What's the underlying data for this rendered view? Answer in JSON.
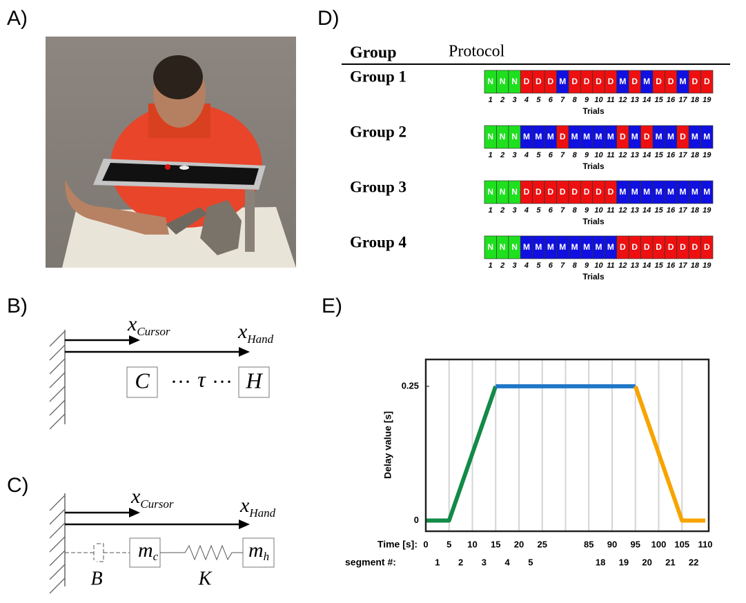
{
  "panel_labels": [
    "A)",
    "B)",
    "C)",
    "D)",
    "E)"
  ],
  "panel_b": {
    "x_cursor": {
      "symbol": "x",
      "subscript": "Cursor"
    },
    "x_hand": {
      "symbol": "x",
      "subscript": "Hand"
    },
    "cursor_box": "C",
    "hand_box": "H",
    "dots": "···",
    "delay": "τ"
  },
  "panel_c": {
    "x_cursor": {
      "symbol": "x",
      "subscript": "Cursor"
    },
    "x_hand": {
      "symbol": "x",
      "subscript": "Hand"
    },
    "damper": "B",
    "spring": "K",
    "cursor_mass": {
      "symbol": "m",
      "subscript": "c"
    },
    "hand_mass": {
      "symbol": "m",
      "subscript": "h"
    }
  },
  "panel_d": {
    "header": [
      "Group",
      "Protocol"
    ],
    "groups": [
      {
        "name": "Group 1",
        "protocol": [
          "N",
          "N",
          "N",
          "D",
          "D",
          "D",
          "M",
          "D",
          "D",
          "D",
          "D",
          "M",
          "D",
          "M",
          "D",
          "D",
          "M",
          "D",
          "D"
        ]
      },
      {
        "name": "Group 2",
        "protocol": [
          "N",
          "N",
          "N",
          "M",
          "M",
          "M",
          "D",
          "M",
          "M",
          "M",
          "M",
          "D",
          "M",
          "D",
          "M",
          "M",
          "D",
          "M",
          "M"
        ]
      },
      {
        "name": "Group 3",
        "protocol": [
          "N",
          "N",
          "N",
          "D",
          "D",
          "D",
          "D",
          "D",
          "D",
          "D",
          "D",
          "M",
          "M",
          "M",
          "M",
          "M",
          "M",
          "M",
          "M"
        ]
      },
      {
        "name": "Group 4",
        "protocol": [
          "N",
          "N",
          "N",
          "M",
          "M",
          "M",
          "M",
          "M",
          "M",
          "M",
          "M",
          "D",
          "D",
          "D",
          "D",
          "D",
          "D",
          "D",
          "D"
        ]
      }
    ],
    "trials": [
      1,
      2,
      3,
      4,
      5,
      6,
      7,
      8,
      9,
      10,
      11,
      12,
      13,
      14,
      15,
      16,
      17,
      18,
      19
    ],
    "trials_label": "Trials",
    "colors": {
      "N": "#1fe01f",
      "D": "#ee1010",
      "M": "#1010e0"
    }
  },
  "chart_data": {
    "type": "line",
    "y_label": "Delay value [s]",
    "x_label": "Time [s]:",
    "categories": [
      0,
      5,
      10,
      15,
      20,
      25,
      null,
      85,
      90,
      95,
      100,
      105,
      110
    ],
    "segment_label": "segment #:",
    "segments": [
      1,
      2,
      3,
      4,
      5,
      null,
      null,
      18,
      19,
      20,
      21,
      22
    ],
    "series": [
      {
        "color": "#138a48",
        "values": [
          0,
          0,
          0.125,
          0.25,
          null,
          null,
          null,
          null,
          null,
          null,
          null,
          null,
          null
        ]
      },
      {
        "color": "#1f78c8",
        "values": [
          null,
          null,
          null,
          0.25,
          0.25,
          0.25,
          0.25,
          0.25,
          0.25,
          0.25,
          null,
          null,
          null
        ]
      },
      {
        "color": "#f7a400",
        "values": [
          null,
          null,
          null,
          null,
          null,
          null,
          null,
          null,
          null,
          0.25,
          0.125,
          0,
          0
        ]
      }
    ],
    "ylim": [
      -0.02,
      0.3
    ],
    "yticks": [
      0,
      0.25
    ],
    "grid": "x"
  }
}
